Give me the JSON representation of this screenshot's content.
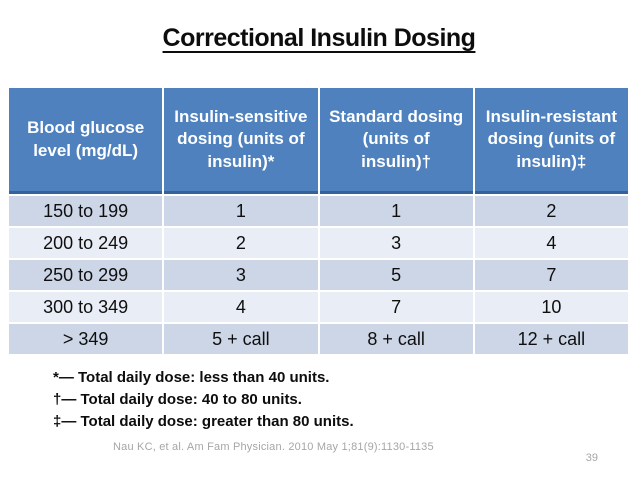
{
  "slide": {
    "title": "Correctional Insulin Dosing",
    "citation": "Nau KC, et al. Am Fam Physician. 2010 May 1;81(9):1130-1135",
    "page_number": "39"
  },
  "table": {
    "columns": [
      "Blood glucose level (mg/dL)",
      "Insulin-sensitive dosing (units of insulin)*",
      "Standard dosing (units of insulin)†",
      "Insulin-resistant dosing (units of insulin)‡"
    ],
    "rows": [
      [
        "150 to 199",
        "1",
        "1",
        "2"
      ],
      [
        "200 to 249",
        "2",
        "3",
        "4"
      ],
      [
        "250 to 299",
        "3",
        "5",
        "7"
      ],
      [
        "300 to 349",
        "4",
        "7",
        "10"
      ],
      [
        "> 349",
        "5 + call",
        "8 + call",
        "12 + call"
      ]
    ]
  },
  "footnotes": [
    "*— Total daily dose: less than 40 units.",
    "†— Total daily dose: 40 to 80 units.",
    "‡— Total daily dose: greater than 80 units."
  ],
  "colors": {
    "header_bg": "#4E81BD",
    "header_text": "#FFFFFF",
    "row_band_dark": "#CDD6E7",
    "row_band_light": "#E9EDF5",
    "body_text": "#0F0F0F",
    "muted_text": "#A6A6A6"
  }
}
